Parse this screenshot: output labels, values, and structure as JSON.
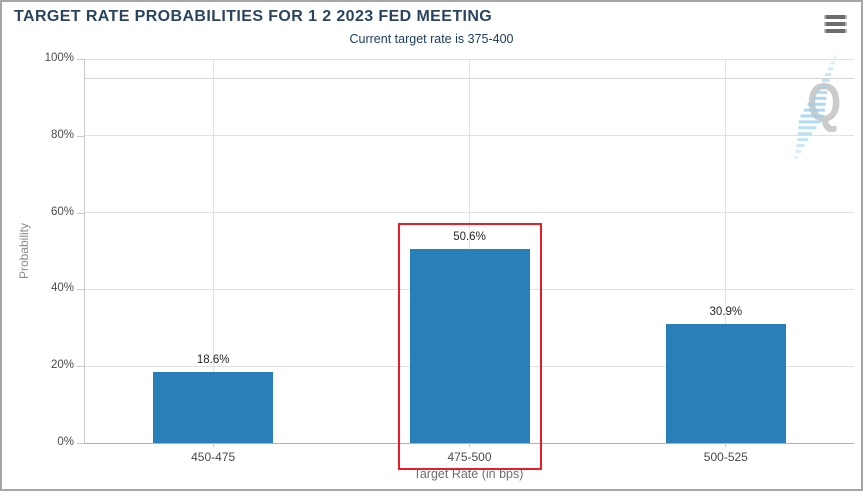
{
  "header": {
    "title": "TARGET RATE PROBABILITIES FOR 1 2 2023 FED MEETING",
    "subtitle": "Current target rate is 375-400"
  },
  "menu": {
    "icon": "hamburger-menu-icon"
  },
  "watermark": {
    "letter": "Q"
  },
  "chart_data": {
    "type": "bar",
    "title": "TARGET RATE PROBABILITIES FOR 1 2 2023 FED MEETING",
    "subtitle": "Current target rate is 375-400",
    "categories": [
      "450-475",
      "475-500",
      "500-525"
    ],
    "values": [
      18.6,
      50.6,
      30.9
    ],
    "value_labels": [
      "18.6%",
      "50.6%",
      "30.9%"
    ],
    "xlabel": "Target Rate (in bps)",
    "ylabel": "Probability",
    "ylim": [
      0,
      100
    ],
    "yticks": [
      0,
      20,
      40,
      60,
      80,
      100
    ],
    "ytick_labels": [
      "0%",
      "20%",
      "40%",
      "60%",
      "80%",
      "100%"
    ],
    "grid": true,
    "legend": "none",
    "bar_color": "#2980b9",
    "highlighted_index": 1,
    "highlighted_category": "475-500",
    "highlight_box_color": "#ec1c24",
    "extra_gridline_pct": 95
  },
  "colors": {
    "title_text": "#2b4560",
    "subtitle_text": "#1d3f63",
    "bar": "#2980b9",
    "highlight_red": "#ec1c24",
    "gridline": "#e0e0e0",
    "axis_line": "#c9c9c9",
    "border": "#a6a6a6",
    "watermark_gray": "#cbcbcb",
    "watermark_blue": "#9ed3ee",
    "menu_icon": "#6d6d6d"
  }
}
